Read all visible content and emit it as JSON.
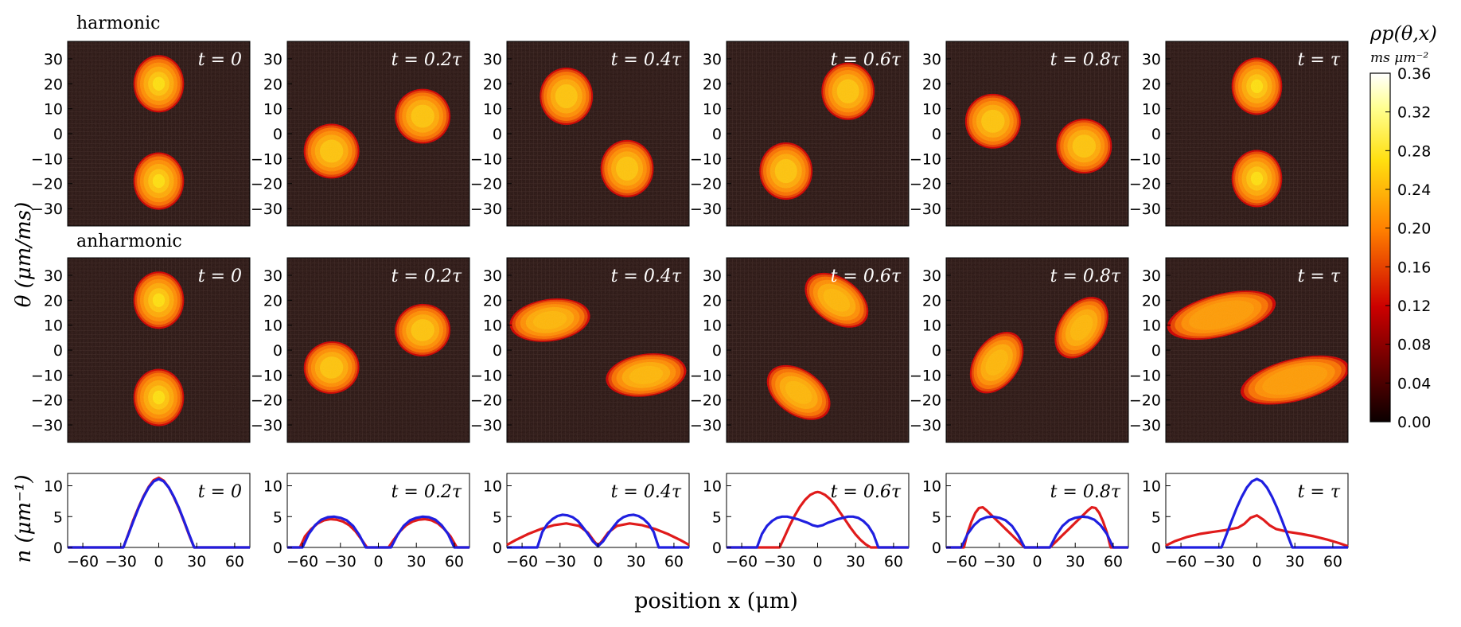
{
  "chart_data": {
    "type": "heatmap",
    "row_labels": [
      "harmonic",
      "anharmonic"
    ],
    "time_labels": [
      "t = 0",
      "t = 0.2τ",
      "t = 0.4τ",
      "t = 0.6τ",
      "t = 0.8τ",
      "t = τ"
    ],
    "ylabel_top": "θ (μm/ms)",
    "ylabel_bottom": "n (μm⁻¹)",
    "xlabel": "position x (μm)",
    "colorbar": {
      "label": "ρp(θ,x)",
      "units": "ms μm⁻²",
      "ticks": [
        "0.00",
        "0.04",
        "0.08",
        "0.12",
        "0.16",
        "0.20",
        "0.24",
        "0.28",
        "0.32",
        "0.36"
      ],
      "range": [
        0,
        0.36
      ]
    },
    "heatmap_axes": {
      "xlim": [
        -72,
        72
      ],
      "ylim": [
        -37,
        37
      ],
      "yticks": [
        30,
        20,
        10,
        0,
        -10,
        -20,
        -30
      ],
      "ytick_labels": [
        "30",
        "20",
        "10",
        "0",
        "−10",
        "−20",
        "−30"
      ]
    },
    "heatmaps": [
      {
        "row": "harmonic",
        "time": "t = 0",
        "blobs": [
          {
            "cx": 0,
            "cy": 20,
            "rx": 20,
            "ry": 11.5,
            "theta_deg": 0,
            "peak": 0.27
          },
          {
            "cx": 0,
            "cy": -19,
            "rx": 20,
            "ry": 11.5,
            "theta_deg": 0,
            "peak": 0.27
          }
        ]
      },
      {
        "row": "harmonic",
        "time": "t = 0.2τ",
        "blobs": [
          {
            "cx": 35,
            "cy": 7,
            "rx": 22,
            "ry": 11,
            "theta_deg": 0,
            "peak": 0.25
          },
          {
            "cx": -37,
            "cy": -7,
            "rx": 22,
            "ry": 11,
            "theta_deg": 0,
            "peak": 0.25
          }
        ]
      },
      {
        "row": "harmonic",
        "time": "t = 0.4τ",
        "blobs": [
          {
            "cx": -25,
            "cy": 15,
            "rx": 21,
            "ry": 11.5,
            "theta_deg": 0,
            "peak": 0.25
          },
          {
            "cx": 23,
            "cy": -14,
            "rx": 21,
            "ry": 11.5,
            "theta_deg": 0,
            "peak": 0.25
          }
        ]
      },
      {
        "row": "harmonic",
        "time": "t = 0.6τ",
        "blobs": [
          {
            "cx": 24,
            "cy": 17,
            "rx": 21,
            "ry": 11.5,
            "theta_deg": 0,
            "peak": 0.25
          },
          {
            "cx": -25,
            "cy": -15,
            "rx": 21,
            "ry": 11.5,
            "theta_deg": 0,
            "peak": 0.25
          }
        ]
      },
      {
        "row": "harmonic",
        "time": "t = 0.8τ",
        "blobs": [
          {
            "cx": -35,
            "cy": 5,
            "rx": 22,
            "ry": 11,
            "theta_deg": 0,
            "peak": 0.25
          },
          {
            "cx": 37,
            "cy": -5,
            "rx": 22,
            "ry": 11,
            "theta_deg": 0,
            "peak": 0.25
          }
        ]
      },
      {
        "row": "harmonic",
        "time": "t = τ",
        "blobs": [
          {
            "cx": 0,
            "cy": 19,
            "rx": 20,
            "ry": 11.5,
            "theta_deg": 0,
            "peak": 0.27
          },
          {
            "cx": 0,
            "cy": -18,
            "rx": 20,
            "ry": 11.5,
            "theta_deg": 0,
            "peak": 0.27
          }
        ]
      },
      {
        "row": "anharmonic",
        "time": "t = 0",
        "blobs": [
          {
            "cx": 0,
            "cy": 20,
            "rx": 20,
            "ry": 11.5,
            "theta_deg": 0,
            "peak": 0.27
          },
          {
            "cx": 0,
            "cy": -19,
            "rx": 20,
            "ry": 11.5,
            "theta_deg": 0,
            "peak": 0.27
          }
        ]
      },
      {
        "row": "anharmonic",
        "time": "t = 0.2τ",
        "blobs": [
          {
            "cx": 35,
            "cy": 8,
            "rx": 22,
            "ry": 10.5,
            "theta_deg": 10,
            "peak": 0.25
          },
          {
            "cx": -37,
            "cy": -7,
            "rx": 22,
            "ry": 10.5,
            "theta_deg": 10,
            "peak": 0.25
          }
        ]
      },
      {
        "row": "anharmonic",
        "time": "t = 0.4τ",
        "blobs": [
          {
            "cx": -38,
            "cy": 12,
            "rx": 32,
            "ry": 8.5,
            "theta_deg": 8,
            "peak": 0.24
          },
          {
            "cx": 38,
            "cy": -10,
            "rx": 32,
            "ry": 8.5,
            "theta_deg": 8,
            "peak": 0.24
          }
        ]
      },
      {
        "row": "anharmonic",
        "time": "t = 0.6τ",
        "blobs": [
          {
            "cx": 15,
            "cy": 20,
            "rx": 28,
            "ry": 9,
            "theta_deg": -35,
            "peak": 0.24
          },
          {
            "cx": -15,
            "cy": -17,
            "rx": 28,
            "ry": 9,
            "theta_deg": -35,
            "peak": 0.24
          }
        ]
      },
      {
        "row": "anharmonic",
        "time": "t = 0.8τ",
        "blobs": [
          {
            "cx": -32,
            "cy": -5,
            "rx": 27,
            "ry": 9,
            "theta_deg": 55,
            "peak": 0.24
          },
          {
            "cx": 35,
            "cy": 9,
            "rx": 27,
            "ry": 9,
            "theta_deg": 55,
            "peak": 0.24
          }
        ]
      },
      {
        "row": "anharmonic",
        "time": "t = τ",
        "blobs": [
          {
            "cx": -28,
            "cy": 14,
            "rx": 44,
            "ry": 8.5,
            "theta_deg": 14,
            "peak": 0.22
          },
          {
            "cx": 30,
            "cy": -12,
            "rx": 44,
            "ry": 8.5,
            "theta_deg": 14,
            "peak": 0.22
          }
        ]
      }
    ],
    "density_axes": {
      "xlim": [
        -72,
        72
      ],
      "ylim": [
        0,
        12
      ],
      "xticks": [
        -60,
        -30,
        0,
        30,
        60
      ],
      "xtick_labels": [
        "−60",
        "−30",
        "0",
        "30",
        "60"
      ],
      "yticks": [
        0,
        5,
        10
      ],
      "ytick_labels": [
        "0",
        "5",
        "10"
      ]
    },
    "density_profiles": [
      {
        "time": "t = 0",
        "harmonic": {
          "color": "#1f1fe0",
          "x": [
            -72,
            -28,
            -24,
            -20,
            -16,
            -12,
            -8,
            -4,
            0,
            4,
            8,
            12,
            16,
            20,
            24,
            28,
            72
          ],
          "y": [
            0,
            0,
            2.1,
            4.3,
            6.4,
            8.2,
            9.7,
            10.7,
            11.1,
            10.7,
            9.7,
            8.2,
            6.4,
            4.3,
            2.1,
            0,
            0
          ]
        },
        "anharmonic": {
          "color": "#e01b1b",
          "x": [
            -72,
            -28,
            -24,
            -20,
            -16,
            -12,
            -8,
            -4,
            0,
            4,
            8,
            12,
            16,
            20,
            24,
            28,
            72
          ],
          "y": [
            0,
            0,
            2.2,
            4.5,
            6.5,
            8.3,
            9.8,
            10.9,
            11.3,
            10.8,
            9.7,
            8.1,
            6.3,
            4.2,
            2.0,
            0,
            0
          ]
        }
      },
      {
        "time": "t = 0.2τ",
        "harmonic": {
          "color": "#1f1fe0",
          "x": [
            -72,
            -60,
            -55,
            -50,
            -45,
            -40,
            -35,
            -30,
            -25,
            -20,
            -15,
            -10,
            10,
            15,
            20,
            25,
            30,
            35,
            40,
            45,
            50,
            55,
            60,
            72
          ],
          "y": [
            0,
            0,
            2.2,
            3.6,
            4.5,
            4.9,
            5.0,
            4.8,
            4.4,
            3.5,
            2.0,
            0,
            0,
            2.0,
            3.5,
            4.4,
            4.8,
            5.0,
            4.9,
            4.5,
            3.6,
            2.2,
            0,
            0
          ]
        },
        "anharmonic": {
          "color": "#e01b1b",
          "x": [
            -72,
            -62,
            -58,
            -53,
            -48,
            -43,
            -38,
            -33,
            -28,
            -23,
            -18,
            -13,
            -9,
            8,
            12,
            17,
            22,
            27,
            32,
            37,
            42,
            47,
            52,
            57,
            62,
            72
          ],
          "y": [
            0,
            0,
            1.8,
            3.0,
            3.9,
            4.4,
            4.6,
            4.5,
            4.2,
            3.6,
            2.6,
            1.2,
            0,
            0,
            1.2,
            2.6,
            3.6,
            4.2,
            4.5,
            4.6,
            4.4,
            3.9,
            3.0,
            1.8,
            0,
            0
          ]
        }
      },
      {
        "time": "t = 0.4τ",
        "harmonic": {
          "color": "#1f1fe0",
          "x": [
            -72,
            -48,
            -44,
            -40,
            -36,
            -32,
            -28,
            -24,
            -20,
            -16,
            -12,
            -8,
            -4,
            0,
            4,
            8,
            12,
            16,
            20,
            24,
            28,
            32,
            36,
            40,
            44,
            48,
            72
          ],
          "y": [
            0,
            0,
            2.5,
            3.8,
            4.6,
            5.1,
            5.3,
            5.2,
            4.9,
            4.3,
            3.3,
            2.2,
            1.0,
            0.2,
            1.0,
            2.2,
            3.3,
            4.3,
            4.9,
            5.2,
            5.3,
            5.1,
            4.6,
            3.8,
            2.5,
            0,
            0
          ]
        },
        "anharmonic": {
          "color": "#e01b1b",
          "x": [
            -72,
            -65,
            -55,
            -45,
            -35,
            -25,
            -15,
            -8,
            -3,
            0,
            3,
            8,
            15,
            25,
            35,
            45,
            55,
            65,
            72
          ],
          "y": [
            0.4,
            1.2,
            2.2,
            3.0,
            3.6,
            3.9,
            3.5,
            2.4,
            1.0,
            0.3,
            1.0,
            2.4,
            3.5,
            3.9,
            3.6,
            3.0,
            2.2,
            1.2,
            0.4
          ]
        }
      },
      {
        "time": "t = 0.6τ",
        "harmonic": {
          "color": "#1f1fe0",
          "x": [
            -72,
            -48,
            -44,
            -40,
            -36,
            -32,
            -28,
            -24,
            -20,
            -16,
            -12,
            -8,
            -4,
            0,
            4,
            8,
            12,
            16,
            20,
            24,
            28,
            32,
            36,
            40,
            44,
            48,
            72
          ],
          "y": [
            0,
            0,
            2.2,
            3.5,
            4.3,
            4.8,
            5.0,
            5.0,
            4.8,
            4.6,
            4.3,
            4.0,
            3.6,
            3.4,
            3.6,
            4.0,
            4.3,
            4.6,
            4.8,
            5.0,
            5.0,
            4.8,
            4.3,
            3.5,
            2.2,
            0,
            0
          ]
        },
        "anharmonic": {
          "color": "#e01b1b",
          "x": [
            -72,
            -30,
            -26,
            -22,
            -18,
            -14,
            -10,
            -6,
            -2,
            0,
            2,
            6,
            10,
            14,
            18,
            22,
            26,
            30,
            34,
            38,
            42,
            72
          ],
          "y": [
            0,
            0,
            1.8,
            3.6,
            5.2,
            6.6,
            7.7,
            8.5,
            8.9,
            9.0,
            8.9,
            8.5,
            7.8,
            6.8,
            5.6,
            4.4,
            3.2,
            2.1,
            1.2,
            0.5,
            0,
            0
          ]
        }
      },
      {
        "time": "t = 0.8τ",
        "harmonic": {
          "color": "#1f1fe0",
          "x": [
            -72,
            -60,
            -55,
            -50,
            -45,
            -40,
            -35,
            -30,
            -25,
            -20,
            -15,
            -10,
            10,
            15,
            20,
            25,
            30,
            35,
            40,
            45,
            50,
            55,
            60,
            72
          ],
          "y": [
            0,
            0,
            2.2,
            3.6,
            4.5,
            4.9,
            5.0,
            4.8,
            4.4,
            3.5,
            2.0,
            0,
            0,
            2.0,
            3.5,
            4.4,
            4.8,
            5.0,
            4.9,
            4.5,
            3.6,
            2.2,
            0,
            0
          ]
        },
        "anharmonic": {
          "color": "#e01b1b",
          "x": [
            -72,
            -58,
            -55,
            -52,
            -49,
            -46,
            -43,
            -40,
            -35,
            -30,
            -25,
            -20,
            -15,
            -10,
            10,
            15,
            20,
            25,
            30,
            35,
            40,
            43,
            46,
            49,
            52,
            55,
            58,
            72
          ],
          "y": [
            0,
            0,
            2.4,
            4.2,
            5.6,
            6.4,
            6.5,
            6.0,
            5.0,
            4.0,
            3.0,
            2.0,
            1.0,
            0,
            0,
            1.0,
            2.0,
            3.0,
            4.0,
            5.0,
            6.0,
            6.5,
            6.4,
            5.6,
            4.2,
            2.4,
            0,
            0
          ]
        }
      },
      {
        "time": "t = τ",
        "harmonic": {
          "color": "#1f1fe0",
          "x": [
            -72,
            -28,
            -24,
            -20,
            -16,
            -12,
            -8,
            -4,
            0,
            4,
            8,
            12,
            16,
            20,
            24,
            28,
            72
          ],
          "y": [
            0,
            0,
            2.1,
            4.3,
            6.4,
            8.2,
            9.7,
            10.7,
            11.1,
            10.7,
            9.7,
            8.2,
            6.4,
            4.3,
            2.1,
            0,
            0
          ]
        },
        "anharmonic": {
          "color": "#e01b1b",
          "x": [
            -72,
            -65,
            -55,
            -45,
            -35,
            -25,
            -15,
            -10,
            -5,
            0,
            5,
            10,
            15,
            25,
            35,
            45,
            55,
            65,
            72
          ],
          "y": [
            0.3,
            1.0,
            1.7,
            2.2,
            2.5,
            2.8,
            3.2,
            3.8,
            4.8,
            5.2,
            4.5,
            3.6,
            3.0,
            2.5,
            2.2,
            1.8,
            1.3,
            0.7,
            0.2
          ]
        }
      }
    ]
  }
}
